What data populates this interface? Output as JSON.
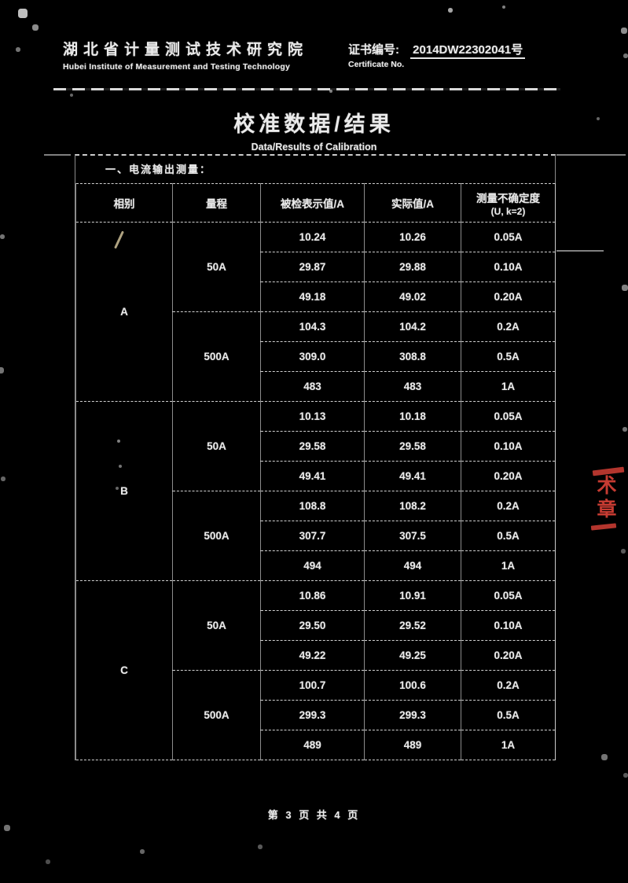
{
  "colors": {
    "background": "#000000",
    "ink": "#ebebeb",
    "stamp_red": "#c63b32"
  },
  "header": {
    "org_cn": "湖北省计量测试技术研究院",
    "org_en": "Hubei Institute of Measurement and Testing Technology",
    "cert_label_cn": "证书编号:",
    "cert_label_en": "Certificate No.",
    "cert_number": "2014DW22302041号"
  },
  "title": {
    "cn": "校准数据/结果",
    "en": "Data/Results of Calibration"
  },
  "section_heading": "一、电流输出测量：",
  "table": {
    "headers": [
      "相别",
      "量程",
      "被检表示值/A",
      "实际值/A",
      "测量不确定度"
    ],
    "header_note": "(U, k=2)",
    "groups": [
      {
        "phase": "A",
        "ranges": [
          {
            "range": "50A",
            "rows": [
              [
                "10.24",
                "10.26",
                "0.05A"
              ],
              [
                "29.87",
                "29.88",
                "0.10A"
              ],
              [
                "49.18",
                "49.02",
                "0.20A"
              ]
            ]
          },
          {
            "range": "500A",
            "rows": [
              [
                "104.3",
                "104.2",
                "0.2A"
              ],
              [
                "309.0",
                "308.8",
                "0.5A"
              ],
              [
                "483",
                "483",
                "1A"
              ]
            ]
          }
        ]
      },
      {
        "phase": "B",
        "ranges": [
          {
            "range": "50A",
            "rows": [
              [
                "10.13",
                "10.18",
                "0.05A"
              ],
              [
                "29.58",
                "29.58",
                "0.10A"
              ],
              [
                "49.41",
                "49.41",
                "0.20A"
              ]
            ]
          },
          {
            "range": "500A",
            "rows": [
              [
                "108.8",
                "108.2",
                "0.2A"
              ],
              [
                "307.7",
                "307.5",
                "0.5A"
              ],
              [
                "494",
                "494",
                "1A"
              ]
            ]
          }
        ]
      },
      {
        "phase": "C",
        "ranges": [
          {
            "range": "50A",
            "rows": [
              [
                "10.86",
                "10.91",
                "0.05A"
              ],
              [
                "29.50",
                "29.52",
                "0.10A"
              ],
              [
                "49.22",
                "49.25",
                "0.20A"
              ]
            ]
          },
          {
            "range": "500A",
            "rows": [
              [
                "100.7",
                "100.6",
                "0.2A"
              ],
              [
                "299.3",
                "299.3",
                "0.5A"
              ],
              [
                "489",
                "489",
                "1A"
              ]
            ]
          }
        ]
      }
    ]
  },
  "stamp": {
    "char_top": "术",
    "char_bottom": "章"
  },
  "footer": {
    "page_text": "第 3 页 共 4 页"
  }
}
